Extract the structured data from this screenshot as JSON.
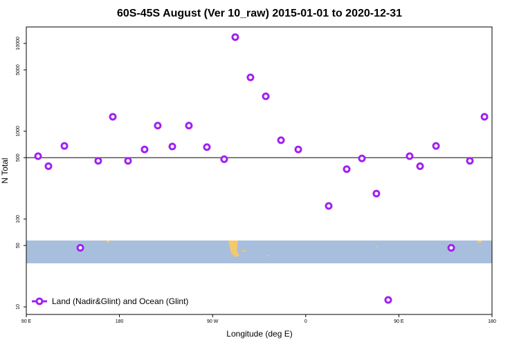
{
  "chart_data": {
    "type": "scatter",
    "title": "60S-45S August (Ver 10_raw)   2015-01-01 to 2020-12-31",
    "x_label": "Longitude (deg E)",
    "y_label": "N Total",
    "log_y": true,
    "legend_position": "bottom-left",
    "hline": 500,
    "xlim": [
      90,
      540
    ],
    "ylim": [
      8.2,
      15400
    ],
    "xticks": [
      {
        "value": 90,
        "label": "90 E"
      },
      180,
      {
        "value": 270,
        "label": "90 W"
      },
      {
        "value": 360,
        "label": "0"
      },
      {
        "value": 450,
        "label": "90 E"
      },
      {
        "value": 540,
        "label": "180"
      }
    ],
    "yticks": [
      10,
      50,
      100,
      500,
      1000,
      5000,
      10000
    ],
    "series": [
      {
        "name": "Land (Nadir&Glint) and Ocean (Glint)",
        "color": "#a020f0",
        "x": [
          101.4,
          111.4,
          126.8,
          142.2,
          159.5,
          173.6,
          188.3,
          204.3,
          217,
          231.1,
          247.1,
          264.5,
          281.2,
          291.9,
          306.6,
          321.4,
          336.1,
          352.8,
          382.2,
          399.6,
          414.3,
          428.3,
          439.7,
          460.4,
          470.5,
          485.9,
          500.6,
          518.6,
          532.7
        ],
        "values": [
          520,
          400,
          680,
          47,
          460,
          1460,
          460,
          620,
          1160,
          670,
          1160,
          660,
          480,
          11800,
          4100,
          2500,
          790,
          620,
          141,
          370,
          490,
          195,
          12,
          520,
          400,
          680,
          47,
          460,
          1460
        ]
      }
    ]
  }
}
